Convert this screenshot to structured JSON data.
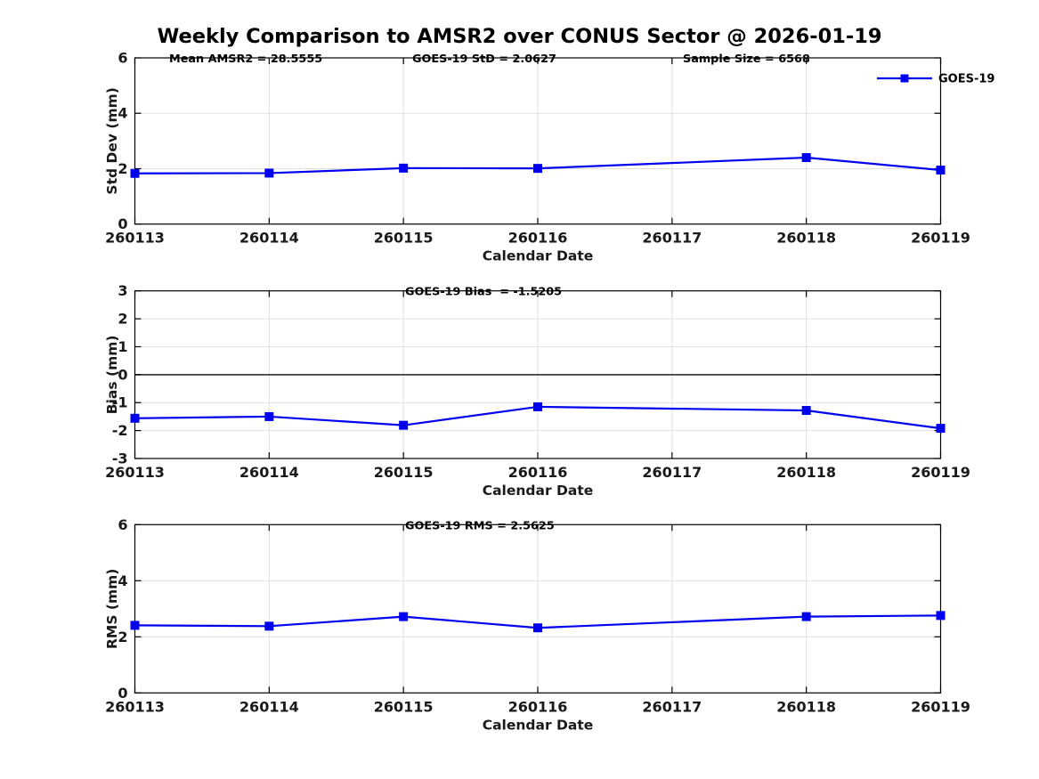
{
  "title": "Weekly Comparison to AMSR2 over CONUS Sector @ 2026-01-19",
  "colors": {
    "series": "#0000EE",
    "grid": "#E0E0E0",
    "axis": "#000000",
    "tick_label": "#1a1a1a",
    "zero_line": "#404040",
    "background": "#ffffff"
  },
  "chart_data": [
    {
      "type": "line",
      "name": "std-dev",
      "ylabel": "Std Dev (mm)",
      "xlabel": "Calendar Date",
      "ylim": [
        0,
        6
      ],
      "yticks": [
        0,
        2,
        4,
        6
      ],
      "xlim": [
        260113,
        260119
      ],
      "x_tick_labels": [
        "260113",
        "260114",
        "260115",
        "260116",
        "260117",
        "260118",
        "260119"
      ],
      "annotations": [
        "Mean AMSR2 = 28.5555",
        "GOES-19 StD = 2.0627",
        "Sample Size = 6568"
      ],
      "zero_line": false,
      "grid": true,
      "legend": {
        "label": "GOES-19",
        "position": "top-right"
      },
      "series": [
        {
          "name": "GOES-19",
          "marker": "filled-square",
          "x": [
            260113,
            260114,
            260115,
            260116,
            260118,
            260119
          ],
          "values": [
            1.83,
            1.84,
            2.02,
            2.01,
            2.4,
            1.95
          ]
        }
      ]
    },
    {
      "type": "line",
      "name": "bias",
      "ylabel": "Bias (mm)",
      "xlabel": "Calendar Date",
      "ylim": [
        -3,
        3
      ],
      "yticks": [
        -3,
        -2,
        -1,
        0,
        1,
        2,
        3
      ],
      "xlim": [
        260113,
        260119
      ],
      "x_tick_labels": [
        "260113",
        "260114",
        "260115",
        "260116",
        "260117",
        "260118",
        "260119"
      ],
      "annotations": [
        "GOES-19 Bias  = -1.5205"
      ],
      "zero_line": true,
      "grid": true,
      "series": [
        {
          "name": "GOES-19",
          "marker": "filled-square",
          "x": [
            260113,
            260114,
            260115,
            260116,
            260118,
            260119
          ],
          "values": [
            -1.56,
            -1.5,
            -1.81,
            -1.15,
            -1.28,
            -1.92
          ]
        }
      ]
    },
    {
      "type": "line",
      "name": "rms",
      "ylabel": "RMS (mm)",
      "xlabel": "Calendar Date",
      "ylim": [
        0,
        6
      ],
      "yticks": [
        0,
        2,
        4,
        6
      ],
      "xlim": [
        260113,
        260119
      ],
      "x_tick_labels": [
        "260113",
        "260114",
        "260115",
        "260116",
        "260117",
        "260118",
        "260119"
      ],
      "annotations": [
        "GOES-19 RMS = 2.5625"
      ],
      "zero_line": false,
      "grid": true,
      "series": [
        {
          "name": "GOES-19",
          "marker": "filled-square",
          "x": [
            260113,
            260114,
            260115,
            260116,
            260118,
            260119
          ],
          "values": [
            2.41,
            2.38,
            2.72,
            2.32,
            2.72,
            2.76
          ]
        }
      ]
    }
  ]
}
